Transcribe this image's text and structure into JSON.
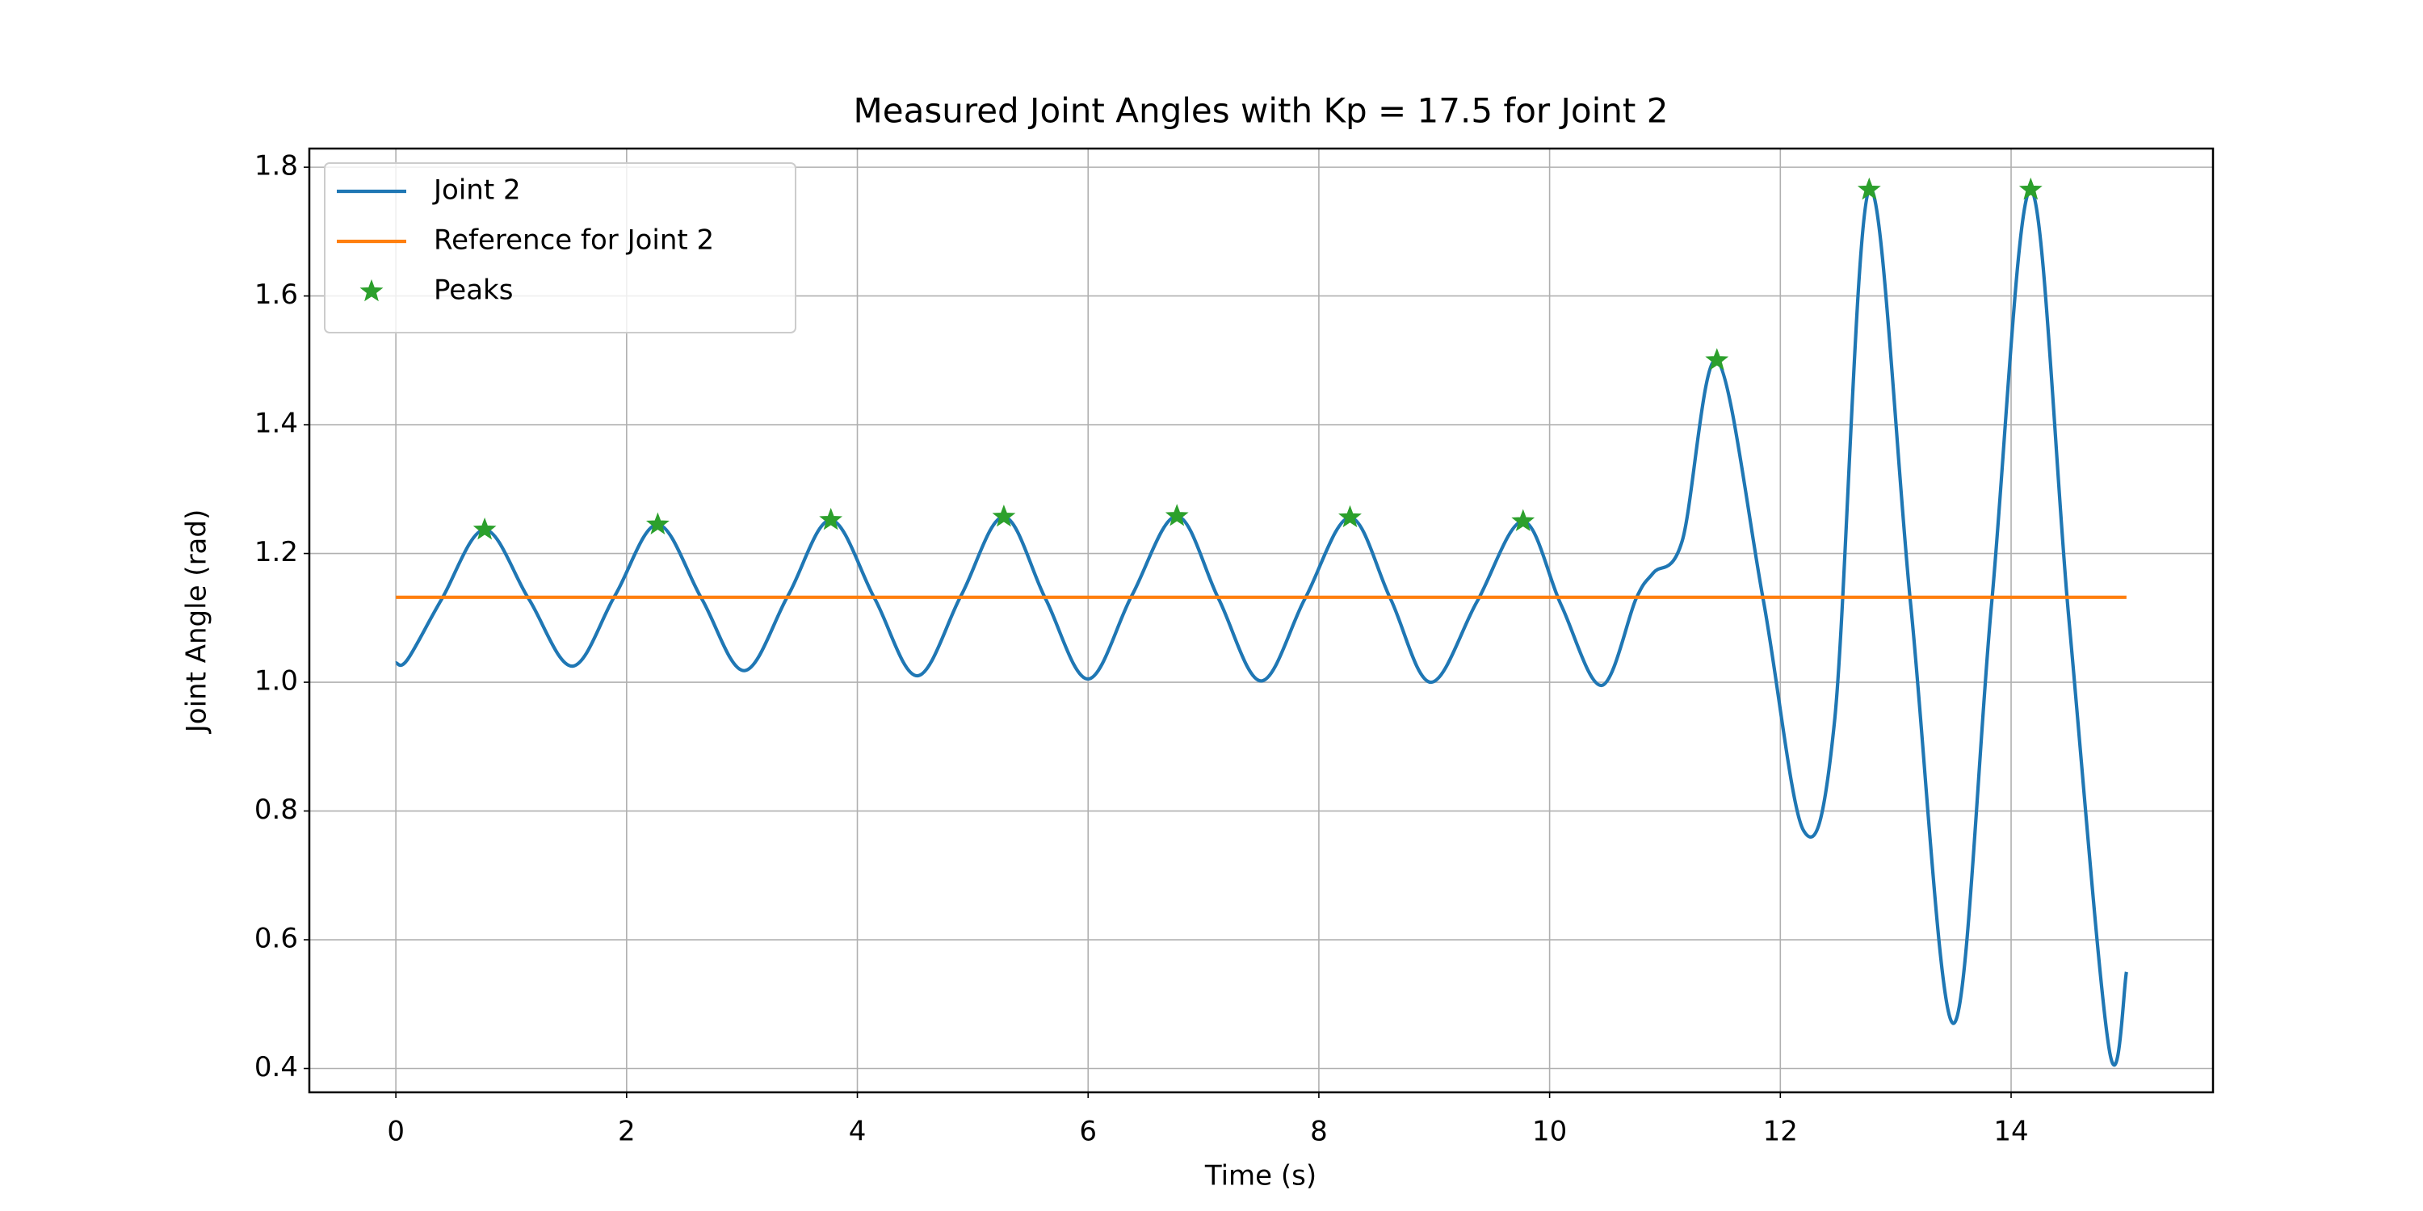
{
  "chart_data": {
    "type": "line",
    "title": "Measured Joint Angles with Kp = 17.5 for Joint 2",
    "x_label": "Time (s)",
    "y_label": "Joint Angle (rad)",
    "xlim": [
      -0.75,
      15.75
    ],
    "xticks": [
      0,
      2,
      4,
      6,
      8,
      10,
      12,
      14
    ],
    "ylim": [
      0.363,
      1.829
    ],
    "yticks": [
      0.4,
      0.6,
      0.8,
      {
        "value": 1.0,
        "label": "1.0"
      },
      1.2,
      1.4,
      1.6,
      1.8
    ],
    "grid": true,
    "legend": "upper left",
    "series": [
      {
        "name": "Joint 2",
        "type": "line",
        "color": "#1f77b4",
        "x": [
          0,
          0.1,
          0.4,
          0.77,
          1.15,
          1.53,
          1.9,
          2.27,
          2.65,
          3.02,
          3.4,
          3.77,
          4.15,
          4.52,
          4.9,
          5.27,
          5.63,
          6.0,
          6.38,
          6.77,
          7.13,
          7.5,
          7.88,
          8.27,
          8.62,
          8.97,
          9.37,
          9.77,
          10.1,
          10.45,
          10.75,
          10.9,
          11.15,
          11.45,
          11.85,
          12.2,
          12.47,
          12.77,
          13.13,
          13.5,
          13.83,
          14.17,
          14.5,
          14.85,
          15.0
        ],
        "values": [
          1.03,
          1.035,
          1.13,
          1.237,
          1.13,
          1.025,
          1.135,
          1.245,
          1.13,
          1.018,
          1.135,
          1.252,
          1.13,
          1.01,
          1.135,
          1.257,
          1.13,
          1.005,
          1.135,
          1.258,
          1.13,
          1.002,
          1.13,
          1.256,
          1.13,
          1.0,
          1.125,
          1.25,
          1.12,
          0.995,
          1.13,
          1.17,
          1.22,
          1.5,
          1.13,
          0.77,
          0.94,
          1.765,
          1.12,
          0.47,
          1.12,
          1.765,
          1.1,
          0.43,
          0.55
        ]
      },
      {
        "name": "Reference for Joint 2",
        "type": "line",
        "color": "#ff7f0e",
        "x": [
          0,
          15
        ],
        "values": [
          1.132,
          1.132
        ]
      },
      {
        "name": "Peaks",
        "type": "scatter",
        "marker": "star",
        "color": "#2ca02c",
        "x": [
          0.77,
          2.27,
          3.77,
          5.27,
          6.77,
          8.27,
          9.77,
          11.45,
          12.77,
          14.17
        ],
        "values": [
          1.237,
          1.245,
          1.252,
          1.257,
          1.258,
          1.256,
          1.25,
          1.5,
          1.765,
          1.765
        ]
      }
    ]
  }
}
